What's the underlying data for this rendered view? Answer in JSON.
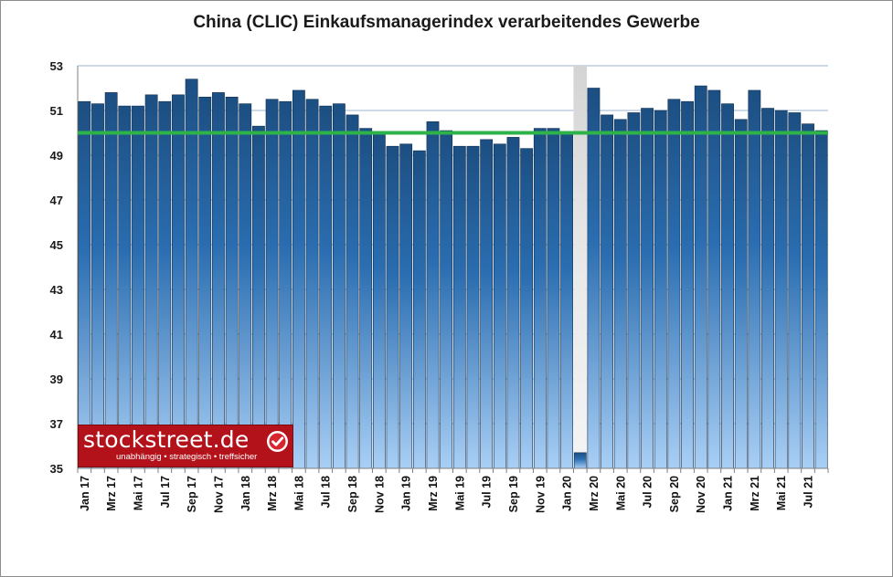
{
  "chart_data": {
    "type": "bar",
    "title": "China (CLIC) Einkaufsmanagerindex verarbeitendes Gewerbe",
    "xlabel": "",
    "ylabel": "",
    "ylim": [
      35,
      53
    ],
    "yticks": [
      35,
      37,
      39,
      41,
      43,
      45,
      47,
      49,
      51,
      53
    ],
    "categories": [
      "Jan 17",
      "Feb 17",
      "Mrz 17",
      "Apr 17",
      "Mai 17",
      "Jun 17",
      "Jul 17",
      "Aug 17",
      "Sep 17",
      "Okt 17",
      "Nov 17",
      "Dez 17",
      "Jan 18",
      "Feb 18",
      "Mrz 18",
      "Apr 18",
      "Mai 18",
      "Jun 18",
      "Jul 18",
      "Aug 18",
      "Sep 18",
      "Okt 18",
      "Nov 18",
      "Dez 18",
      "Jan 19",
      "Feb 19",
      "Mrz 19",
      "Apr 19",
      "Mai 19",
      "Jun 19",
      "Jul 19",
      "Aug 19",
      "Sep 19",
      "Okt 19",
      "Nov 19",
      "Dez 19",
      "Jan 20",
      "Feb 20",
      "Mrz 20",
      "Apr 20",
      "Mai 20",
      "Jun 20",
      "Jul 20",
      "Aug 20",
      "Sep 20",
      "Okt 20",
      "Nov 20",
      "Dez 20",
      "Jan 21",
      "Feb 21",
      "Mrz 21",
      "Apr 21",
      "Mai 21",
      "Jun 21",
      "Jul 21",
      "Aug 21"
    ],
    "tick_labels": [
      "Jan 17",
      "Mrz 17",
      "Mai 17",
      "Jul 17",
      "Sep 17",
      "Nov 17",
      "Jan 18",
      "Mrz 18",
      "Mai 18",
      "Jul 18",
      "Sep 18",
      "Nov 18",
      "Jan 19",
      "Mrz 19",
      "Mai 19",
      "Jul 19",
      "Sep 19",
      "Nov 19",
      "Jan 20",
      "Mrz 20",
      "Mai 20",
      "Jul 20",
      "Sep 20",
      "Nov 20",
      "Jan 21",
      "Mrz 21",
      "Mai 21",
      "Jul 21"
    ],
    "values": [
      51.4,
      51.3,
      51.8,
      51.2,
      51.2,
      51.7,
      51.4,
      51.7,
      52.4,
      51.6,
      51.8,
      51.6,
      51.3,
      50.3,
      51.5,
      51.4,
      51.9,
      51.5,
      51.2,
      51.3,
      50.8,
      50.2,
      50.0,
      49.4,
      49.5,
      49.2,
      50.5,
      50.1,
      49.4,
      49.4,
      49.7,
      49.5,
      49.8,
      49.3,
      50.2,
      50.2,
      50.0,
      35.7,
      52.0,
      50.8,
      50.6,
      50.9,
      51.1,
      51.0,
      51.5,
      51.4,
      52.1,
      51.9,
      51.3,
      50.6,
      51.9,
      51.1,
      51.0,
      50.9,
      50.4,
      50.1
    ],
    "reference_line": {
      "value": 50,
      "color": "#2eb34a"
    },
    "colors": {
      "bar_top": "#1c4f82",
      "bar_bottom": "#a9cff5",
      "highlight_bar_top": "#d4d4d4",
      "highlight_bar_bottom": "#f4f4f4",
      "gridline": "#9eb6cf",
      "ytick_text": "#1a1a1a"
    },
    "highlight_index": 37,
    "grid": true,
    "legend": "none"
  },
  "logo": {
    "wordmark": "stockstreet.de",
    "tagline": "unabhängig • strategisch • treffsicher",
    "icon": "checkmark-icon"
  }
}
